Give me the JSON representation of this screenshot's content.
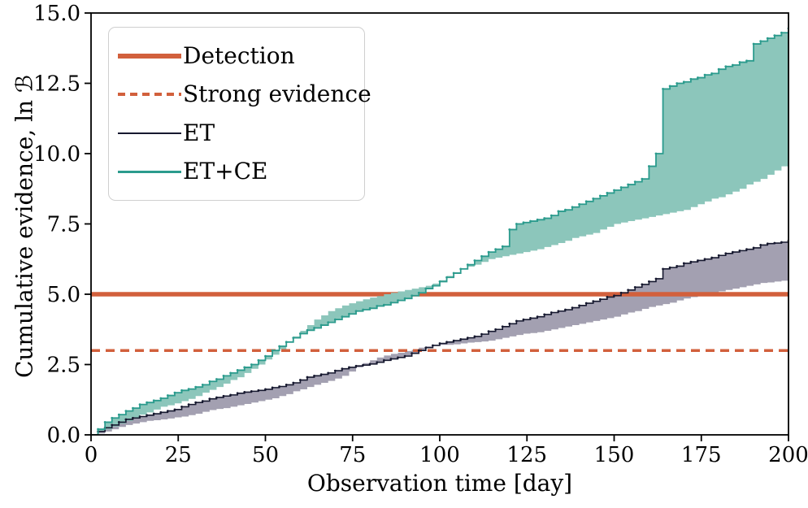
{
  "figure": {
    "background": "#ffffff",
    "axis_color": "#000000",
    "tick_font_size": 26
  },
  "legend": {
    "items": [
      {
        "label": "Detection",
        "type": "solid-thick",
        "color": "#d2603c"
      },
      {
        "label": "Strong evidence",
        "type": "dashed",
        "color": "#d2603c"
      },
      {
        "label": "ET",
        "type": "solid-thin",
        "color": "#16182f"
      },
      {
        "label": "ET+CE",
        "type": "solid-thin",
        "color": "#2b9b8d"
      }
    ]
  },
  "chart_data": {
    "type": "line",
    "title": "",
    "xlabel": "Observation time [day]",
    "ylabel": "Cumulative evidence, ln ℬ",
    "xlim": [
      0,
      200
    ],
    "ylim": [
      0,
      15
    ],
    "grid": false,
    "legend_position": "upper left",
    "x_tick_values": [
      0,
      25,
      50,
      75,
      100,
      125,
      150,
      175,
      200
    ],
    "x_tick_labels": [
      "0",
      "25",
      "50",
      "75",
      "100",
      "125",
      "150",
      "175",
      "200"
    ],
    "y_tick_values": [
      0,
      2.5,
      5,
      7.5,
      10,
      12.5,
      15
    ],
    "y_tick_labels": [
      "0.0",
      "2.5",
      "5.0",
      "7.5",
      "10.0",
      "12.5",
      "15.0"
    ],
    "reference_lines": [
      {
        "name": "Detection",
        "y": 5,
        "style": "solid",
        "width": 5.5,
        "color": "#d2603c"
      },
      {
        "name": "Strong evidence",
        "y": 3,
        "style": "dashed",
        "width": 3.5,
        "dash": [
          11,
          7
        ],
        "color": "#d2603c"
      }
    ],
    "x_step": 2,
    "series": [
      {
        "name": "ET",
        "line_color": "#16182f",
        "band_color": "#a3a0b1",
        "line": [
          0,
          0.12,
          0.25,
          0.35,
          0.45,
          0.55,
          0.6,
          0.65,
          0.7,
          0.75,
          0.8,
          0.85,
          0.9,
          1.0,
          1.08,
          1.15,
          1.2,
          1.28,
          1.33,
          1.38,
          1.42,
          1.48,
          1.52,
          1.55,
          1.58,
          1.62,
          1.68,
          1.72,
          1.78,
          1.85,
          1.95,
          2.05,
          2.1,
          2.15,
          2.2,
          2.28,
          2.35,
          2.4,
          2.45,
          2.48,
          2.52,
          2.58,
          2.65,
          2.7,
          2.75,
          2.8,
          2.9,
          3.0,
          3.1,
          3.18,
          3.25,
          3.3,
          3.35,
          3.4,
          3.45,
          3.5,
          3.58,
          3.68,
          3.75,
          3.85,
          3.95,
          4.05,
          4.1,
          4.15,
          4.2,
          4.28,
          4.35,
          4.4,
          4.45,
          4.52,
          4.6,
          4.68,
          4.75,
          4.82,
          4.9,
          4.95,
          5.05,
          5.15,
          5.25,
          5.35,
          5.45,
          5.55,
          5.9,
          5.95,
          6.0,
          6.1,
          6.15,
          6.2,
          6.25,
          6.3,
          6.38,
          6.45,
          6.5,
          6.55,
          6.6,
          6.65,
          6.75,
          6.8,
          6.82,
          6.85,
          6.9
        ],
        "band_edge": [
          0,
          0.05,
          0.12,
          0.2,
          0.28,
          0.35,
          0.4,
          0.45,
          0.5,
          0.52,
          0.55,
          0.58,
          0.62,
          0.65,
          0.7,
          0.75,
          0.82,
          0.88,
          0.92,
          0.95,
          1.0,
          1.05,
          1.1,
          1.15,
          1.2,
          1.25,
          1.3,
          1.38,
          1.45,
          1.55,
          1.62,
          1.7,
          1.78,
          1.85,
          1.92,
          2.0,
          2.1,
          2.25,
          2.4,
          2.55,
          2.65,
          2.75,
          2.82,
          2.88,
          2.92,
          2.98,
          3.02,
          3.1,
          3.15,
          3.18,
          3.2,
          3.2,
          3.22,
          3.25,
          3.28,
          3.3,
          3.32,
          3.35,
          3.4,
          3.45,
          3.5,
          3.55,
          3.6,
          3.62,
          3.65,
          3.7,
          3.75,
          3.8,
          3.85,
          3.9,
          3.95,
          4.0,
          4.05,
          4.1,
          4.15,
          4.2,
          4.28,
          4.35,
          4.4,
          4.48,
          4.55,
          4.6,
          4.65,
          4.7,
          4.78,
          4.85,
          4.9,
          4.95,
          5.0,
          5.05,
          5.1,
          5.15,
          5.2,
          5.25,
          5.3,
          5.35,
          5.4,
          5.42,
          5.45,
          5.48,
          5.5
        ]
      },
      {
        "name": "ET+CE",
        "line_color": "#2b9b8d",
        "band_color": "#8cc6bb",
        "line": [
          0,
          0.2,
          0.45,
          0.6,
          0.72,
          0.85,
          0.95,
          1.08,
          1.15,
          1.22,
          1.3,
          1.4,
          1.5,
          1.58,
          1.63,
          1.7,
          1.78,
          1.9,
          1.98,
          2.1,
          2.2,
          2.3,
          2.4,
          2.5,
          2.65,
          2.8,
          3.0,
          3.15,
          3.3,
          3.45,
          3.6,
          3.72,
          3.8,
          3.9,
          4.0,
          4.1,
          4.2,
          4.3,
          4.4,
          4.45,
          4.5,
          4.58,
          4.62,
          4.7,
          4.78,
          4.85,
          4.95,
          5.05,
          5.2,
          5.3,
          5.45,
          5.6,
          5.75,
          5.9,
          6.05,
          6.2,
          6.35,
          6.5,
          6.6,
          6.7,
          7.3,
          7.5,
          7.55,
          7.6,
          7.65,
          7.7,
          7.8,
          7.95,
          8.0,
          8.1,
          8.2,
          8.3,
          8.4,
          8.5,
          8.6,
          8.7,
          8.8,
          8.9,
          9.0,
          9.1,
          9.55,
          10.0,
          12.3,
          12.4,
          12.5,
          12.55,
          12.65,
          12.7,
          12.8,
          12.85,
          13.0,
          13.1,
          13.15,
          13.25,
          13.3,
          13.9,
          14.0,
          14.1,
          14.2,
          14.3,
          14.45
        ],
        "band_edge": [
          0,
          0.1,
          0.2,
          0.3,
          0.4,
          0.5,
          0.62,
          0.72,
          0.8,
          0.9,
          1.0,
          1.05,
          1.12,
          1.2,
          1.28,
          1.38,
          1.5,
          1.6,
          1.7,
          1.82,
          1.95,
          2.05,
          2.2,
          2.35,
          2.5,
          2.68,
          2.85,
          3.05,
          3.3,
          3.5,
          3.7,
          3.9,
          4.1,
          4.25,
          4.4,
          4.5,
          4.6,
          4.68,
          4.75,
          4.82,
          4.88,
          4.93,
          5.0,
          5.05,
          5.1,
          5.15,
          5.2,
          5.25,
          5.3,
          5.38,
          5.5,
          5.65,
          5.78,
          5.88,
          5.98,
          6.05,
          6.15,
          6.25,
          6.3,
          6.35,
          6.4,
          6.45,
          6.5,
          6.55,
          6.6,
          6.68,
          6.75,
          6.82,
          6.9,
          7.0,
          7.06,
          7.12,
          7.18,
          7.3,
          7.4,
          7.5,
          7.55,
          7.6,
          7.65,
          7.7,
          7.75,
          7.8,
          7.85,
          7.9,
          7.95,
          8.0,
          8.1,
          8.2,
          8.3,
          8.4,
          8.45,
          8.55,
          8.65,
          8.75,
          8.9,
          9.0,
          9.1,
          9.25,
          9.4,
          9.55,
          9.7
        ]
      }
    ]
  }
}
